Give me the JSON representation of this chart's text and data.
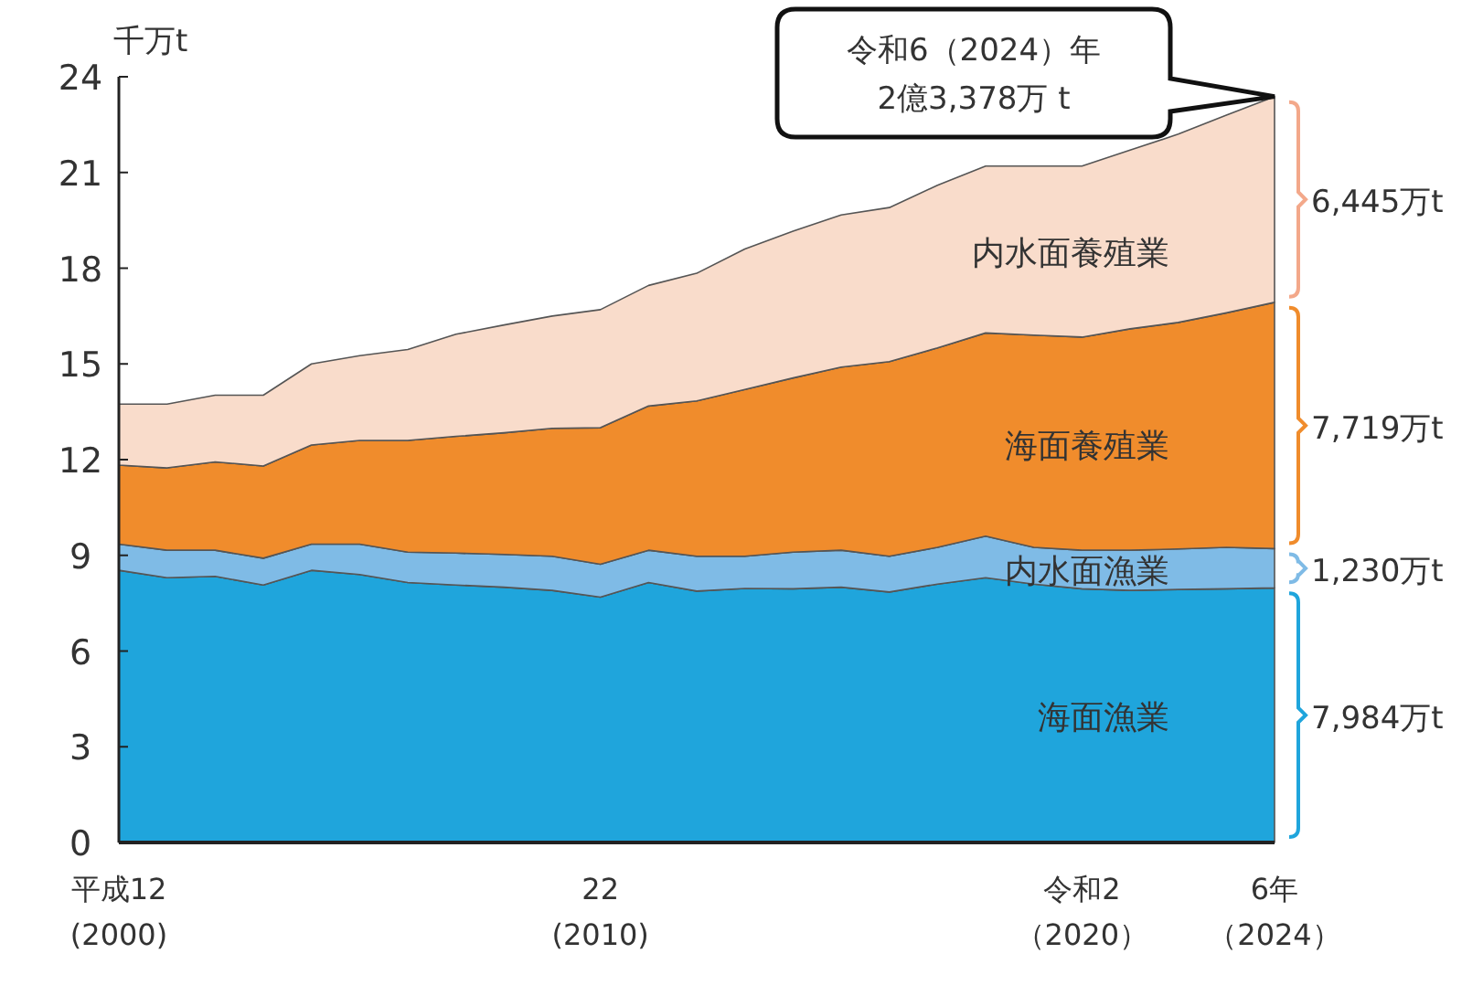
{
  "chart_data": {
    "type": "area",
    "stacked": true,
    "ylabel": "千万t",
    "categories": [
      "平成12 (2000)",
      null,
      null,
      null,
      null,
      null,
      null,
      null,
      null,
      null,
      "22 (2010)",
      null,
      null,
      null,
      null,
      null,
      null,
      null,
      null,
      null,
      "令和2（2020）",
      null,
      null,
      null,
      "6年（2024）"
    ],
    "series": [
      {
        "name": "海面漁業",
        "color": "#1fa5dc",
        "values": [
          8.53,
          8.3,
          8.34,
          8.07,
          8.53,
          8.4,
          8.15,
          8.07,
          8.0,
          7.9,
          7.69,
          8.15,
          7.88,
          7.96,
          7.95,
          8.0,
          7.85,
          8.1,
          8.3,
          8.1,
          7.95,
          7.9,
          7.93,
          7.95,
          7.98
        ]
      },
      {
        "name": "内水面漁業",
        "color": "#7fbbe6",
        "values": [
          0.82,
          0.86,
          0.82,
          0.84,
          0.82,
          0.95,
          0.95,
          1.0,
          1.03,
          1.07,
          1.03,
          1.01,
          1.09,
          1.01,
          1.15,
          1.16,
          1.12,
          1.15,
          1.3,
          1.15,
          1.21,
          1.26,
          1.27,
          1.3,
          1.23
        ]
      },
      {
        "name": "海面養殖業",
        "color": "#f08c2c",
        "values": [
          2.48,
          2.58,
          2.77,
          2.89,
          3.11,
          3.25,
          3.5,
          3.66,
          3.81,
          4.01,
          4.28,
          4.52,
          4.87,
          5.23,
          5.46,
          5.74,
          6.1,
          6.25,
          6.37,
          6.65,
          6.68,
          6.94,
          7.1,
          7.35,
          7.72
        ]
      },
      {
        "name": "内水面養殖業",
        "color": "#f9dccb",
        "values": [
          1.91,
          2.0,
          2.09,
          2.22,
          2.54,
          2.66,
          2.85,
          3.2,
          3.38,
          3.52,
          3.7,
          3.78,
          4.0,
          4.4,
          4.6,
          4.77,
          4.83,
          5.1,
          5.23,
          5.3,
          5.36,
          5.6,
          5.9,
          6.2,
          6.45
        ]
      }
    ],
    "ylim": [
      0,
      24
    ],
    "yticks": [
      0,
      3,
      6,
      9,
      12,
      15,
      18,
      21,
      24
    ],
    "annotations": [
      "令和6（2024）年\n2億3,378万 t",
      "6,445万t",
      "7,719万t",
      "1,230万t",
      "7,984万t"
    ]
  }
}
